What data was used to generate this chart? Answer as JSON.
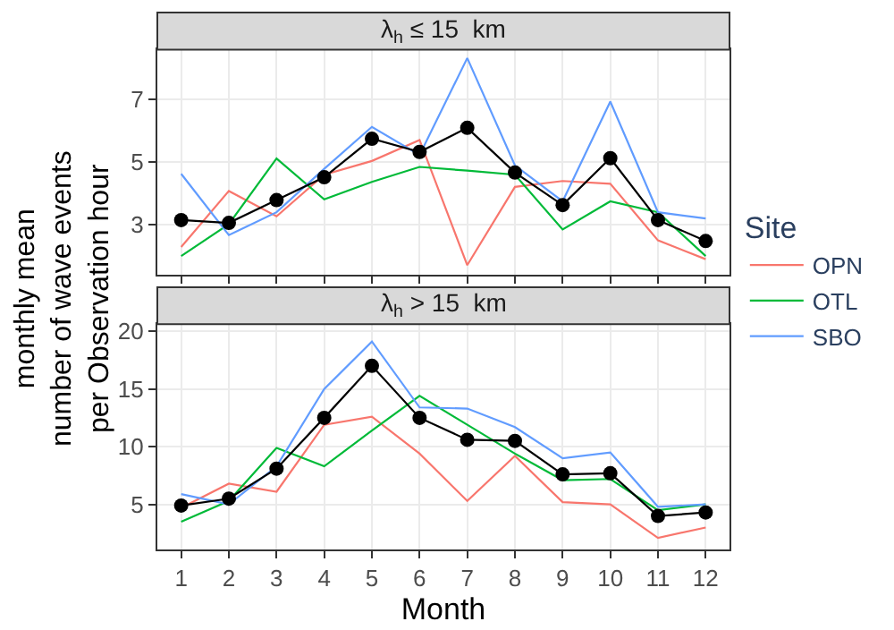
{
  "chart_data": [
    {
      "type": "line",
      "title": "λ$_{h}$ ≤ 15  km",
      "ylabel": "monthly mean\nnumber of wave events\nper Observation hour",
      "legend_title": "Site",
      "legend": "right",
      "grid": true,
      "tick_labels": "y",
      "x": [
        1,
        2,
        3,
        4,
        5,
        6,
        7,
        8,
        9,
        10,
        11,
        12
      ],
      "xlim": [
        0.5,
        12.5
      ],
      "xticks": [
        1,
        2,
        3,
        4,
        5,
        6,
        7,
        8,
        9,
        10,
        11,
        12
      ],
      "ylim": [
        1.4,
        8.6
      ],
      "yticks": [
        3,
        5,
        7
      ],
      "series": [
        {
          "name": "OPN",
          "color": "#f8766d",
          "values": [
            2.29,
            4.08,
            3.27,
            4.6,
            5.04,
            5.71,
            1.71,
            4.21,
            4.4,
            4.31,
            2.5,
            1.9
          ]
        },
        {
          "name": "OTL",
          "color": "#00ba38",
          "values": [
            2.0,
            3.02,
            5.12,
            3.81,
            4.37,
            4.85,
            4.73,
            4.6,
            2.85,
            3.75,
            3.4,
            2.0
          ]
        },
        {
          "name": "SBO",
          "color": "#619cff",
          "values": [
            4.63,
            2.67,
            3.4,
            4.79,
            6.13,
            5.23,
            8.33,
            4.9,
            3.75,
            6.94,
            3.4,
            3.2
          ]
        },
        {
          "color": "#000000",
          "marker": "circle",
          "values": [
            3.15,
            3.06,
            3.79,
            4.52,
            5.75,
            5.33,
            6.1,
            4.67,
            3.63,
            5.13,
            3.15,
            2.48
          ]
        }
      ]
    },
    {
      "type": "line",
      "title": "λ$_{h}$ > 15  km",
      "xlabel": "Month",
      "grid": true,
      "x": [
        1,
        2,
        3,
        4,
        5,
        6,
        7,
        8,
        9,
        10,
        11,
        12
      ],
      "xlim": [
        0.5,
        12.5
      ],
      "xticks": [
        1,
        2,
        3,
        4,
        5,
        6,
        7,
        8,
        9,
        10,
        11,
        12
      ],
      "ylim": [
        1.1,
        20.6
      ],
      "yticks": [
        5,
        10,
        15,
        20
      ],
      "series": [
        {
          "color": "#f8766d",
          "values": [
            4.7,
            6.8,
            6.1,
            11.9,
            12.6,
            9.4,
            5.3,
            9.2,
            5.2,
            5.0,
            2.1,
            3.0
          ]
        },
        {
          "color": "#00ba38",
          "values": [
            3.5,
            5.3,
            9.9,
            8.3,
            11.4,
            14.4,
            11.9,
            9.4,
            7.1,
            7.2,
            4.5,
            5.0
          ]
        },
        {
          "color": "#619cff",
          "values": [
            5.9,
            5.0,
            8.3,
            15.0,
            19.1,
            13.4,
            13.3,
            11.7,
            9.0,
            9.5,
            4.8,
            5.0
          ]
        },
        {
          "color": "#000000",
          "marker": "circle",
          "values": [
            4.9,
            5.5,
            8.1,
            12.5,
            17.0,
            12.5,
            10.6,
            10.5,
            7.6,
            7.7,
            4.0,
            4.3
          ]
        }
      ]
    }
  ]
}
